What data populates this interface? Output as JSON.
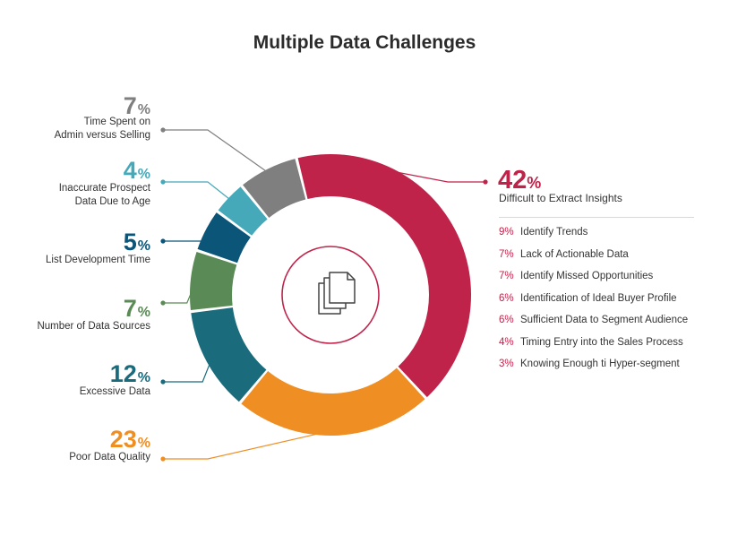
{
  "colors": {
    "difficult": "#c0234a",
    "poor_quality": "#ef8e23",
    "excessive": "#1a6b7c",
    "sources": "#5a8a55",
    "list_dev": "#0b5579",
    "inaccurate": "#45a9ba",
    "time_spent": "#7f7f7f"
  },
  "center_icon": "documents-icon",
  "chart_data": {
    "type": "pie",
    "title": "Multiple Data Challenges",
    "slices": [
      {
        "label": "Difficult to Extract Insights",
        "value": 42,
        "pct_text": "42",
        "color": "#c0234a"
      },
      {
        "label": "Poor Data Quality",
        "value": 23,
        "pct_text": "23",
        "color": "#ef8e23"
      },
      {
        "label": "Excessive Data",
        "value": 12,
        "pct_text": "12",
        "color": "#1a6b7c"
      },
      {
        "label": "Number of Data Sources",
        "value": 7,
        "pct_text": "7",
        "color": "#5a8a55"
      },
      {
        "label": "List Development Time",
        "value": 5,
        "pct_text": "5",
        "color": "#0b5579"
      },
      {
        "label": "Inaccurate Prospect\nData Due to Age",
        "value": 4,
        "pct_text": "4",
        "color": "#45a9ba"
      },
      {
        "label": "Time Spent on\nAdmin versus Selling",
        "value": 7,
        "pct_text": "7",
        "color": "#7f7f7f"
      }
    ],
    "percent_symbol": "%",
    "breakdown": [
      {
        "pct": "9%",
        "label": "Identify Trends"
      },
      {
        "pct": "7%",
        "label": "Lack of Actionable Data"
      },
      {
        "pct": "7%",
        "label": "Identify Missed Opportunities"
      },
      {
        "pct": "6%",
        "label": "Identification of Ideal Buyer Profile"
      },
      {
        "pct": "6%",
        "label": "Sufficient Data to Segment Audience"
      },
      {
        "pct": "4%",
        "label": "Timing Entry into the Sales Process"
      },
      {
        "pct": "3%",
        "label": "Knowing Enough ti Hyper-segment"
      }
    ]
  }
}
